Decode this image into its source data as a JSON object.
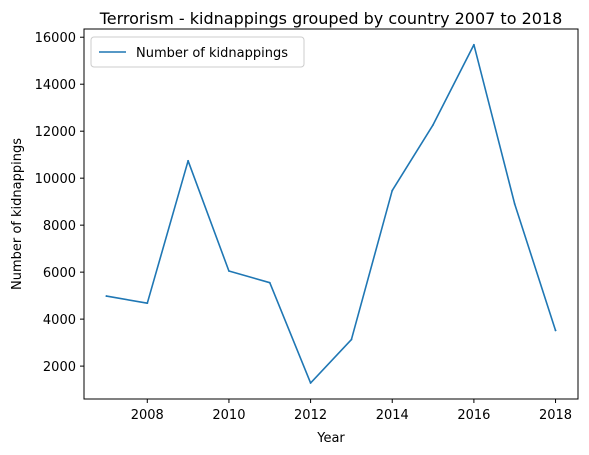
{
  "chart_data": {
    "type": "line",
    "title": "Terrorism - kidnappings grouped by country 2007 to 2018",
    "xlabel": "Year",
    "ylabel": "Number of kidnappings",
    "xlim": [
      2006.45,
      2018.55
    ],
    "ylim": [
      600,
      16350
    ],
    "xticks": [
      2008,
      2010,
      2012,
      2014,
      2016,
      2018
    ],
    "yticks": [
      2000,
      4000,
      6000,
      8000,
      10000,
      12000,
      14000,
      16000
    ],
    "grid": false,
    "legend_position": "top-left",
    "series": [
      {
        "name": "Number of kidnappings",
        "color": "#1f77b4",
        "x": [
          2007,
          2008,
          2009,
          2010,
          2011,
          2012,
          2013,
          2014,
          2015,
          2016,
          2017,
          2018
        ],
        "y": [
          4980,
          4680,
          10740,
          6050,
          5550,
          1280,
          3130,
          9470,
          12270,
          15680,
          8900,
          3520
        ]
      }
    ]
  }
}
